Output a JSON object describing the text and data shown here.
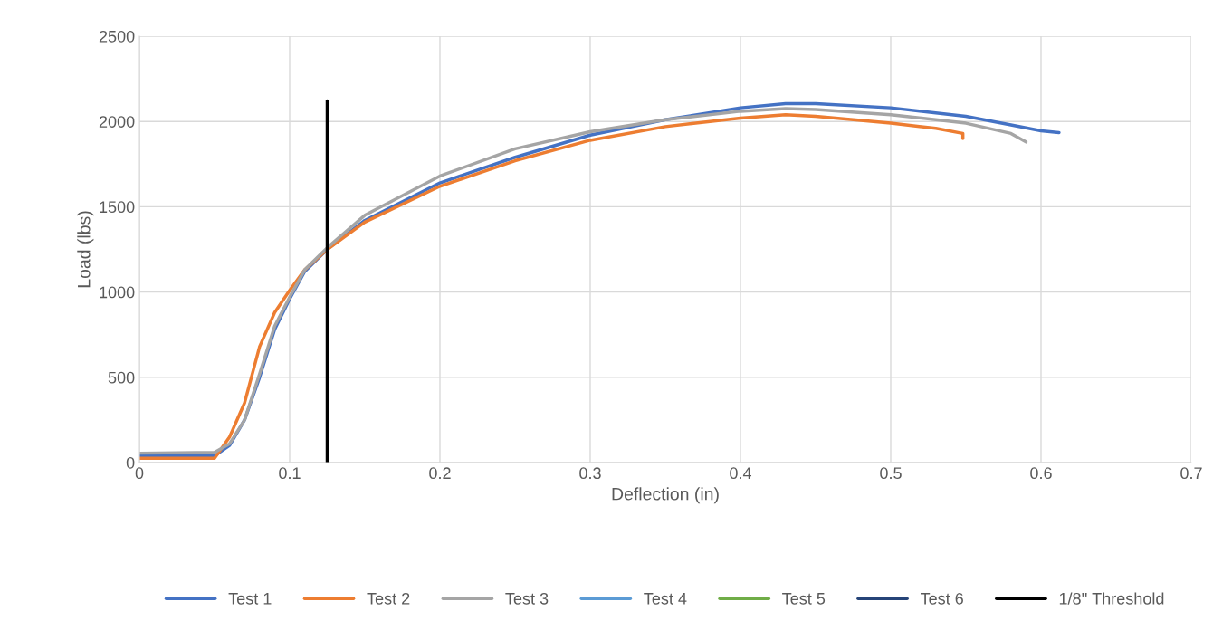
{
  "chart_data": {
    "type": "line",
    "xlabel": "Deflection (in)",
    "ylabel": "Load (lbs)",
    "xlim": [
      0,
      0.7
    ],
    "xticks": [
      0,
      0.1,
      0.2,
      0.3,
      0.4,
      0.5,
      0.6,
      0.7
    ],
    "ylim": [
      0,
      2500
    ],
    "yticks": [
      0,
      500,
      1000,
      1500,
      2000,
      2500
    ],
    "grid": true,
    "legend": "bottom",
    "marker": "none",
    "line_style": "solid",
    "series": [
      {
        "name": "Test 1",
        "color": "#4472c4",
        "x": [
          0,
          0.05,
          0.06,
          0.07,
          0.08,
          0.09,
          0.1,
          0.11,
          0.125,
          0.15,
          0.2,
          0.25,
          0.3,
          0.35,
          0.4,
          0.43,
          0.45,
          0.5,
          0.55,
          0.58,
          0.6,
          0.612
        ],
        "values": [
          40,
          40,
          100,
          250,
          500,
          780,
          960,
          1120,
          1250,
          1420,
          1640,
          1790,
          1920,
          2010,
          2080,
          2105,
          2105,
          2080,
          2030,
          1980,
          1945,
          1935
        ]
      },
      {
        "name": "Test 2",
        "color": "#ed7d31",
        "x": [
          0,
          0.05,
          0.06,
          0.07,
          0.08,
          0.09,
          0.1,
          0.11,
          0.125,
          0.15,
          0.2,
          0.25,
          0.3,
          0.35,
          0.4,
          0.43,
          0.45,
          0.5,
          0.53,
          0.548,
          0.548
        ],
        "values": [
          25,
          25,
          150,
          350,
          680,
          880,
          1010,
          1130,
          1250,
          1410,
          1620,
          1770,
          1890,
          1970,
          2020,
          2040,
          2030,
          1990,
          1960,
          1930,
          1900
        ]
      },
      {
        "name": "Test 3",
        "color": "#a5a5a5",
        "x": [
          0,
          0.05,
          0.06,
          0.07,
          0.08,
          0.09,
          0.1,
          0.11,
          0.125,
          0.15,
          0.2,
          0.25,
          0.3,
          0.35,
          0.4,
          0.43,
          0.45,
          0.5,
          0.55,
          0.58,
          0.59
        ],
        "values": [
          55,
          60,
          110,
          250,
          520,
          800,
          970,
          1130,
          1260,
          1450,
          1680,
          1840,
          1940,
          2010,
          2060,
          2075,
          2070,
          2040,
          1990,
          1930,
          1880
        ]
      },
      {
        "name": "Test 4",
        "color": "#5b9bd5"
      },
      {
        "name": "Test 5",
        "color": "#70ad47"
      },
      {
        "name": "Test 6",
        "color": "#264478"
      },
      {
        "name": "1/8'' Threshold",
        "color": "#000000",
        "x": [
          0.125,
          0.125
        ],
        "values": [
          0,
          2120
        ]
      }
    ]
  }
}
